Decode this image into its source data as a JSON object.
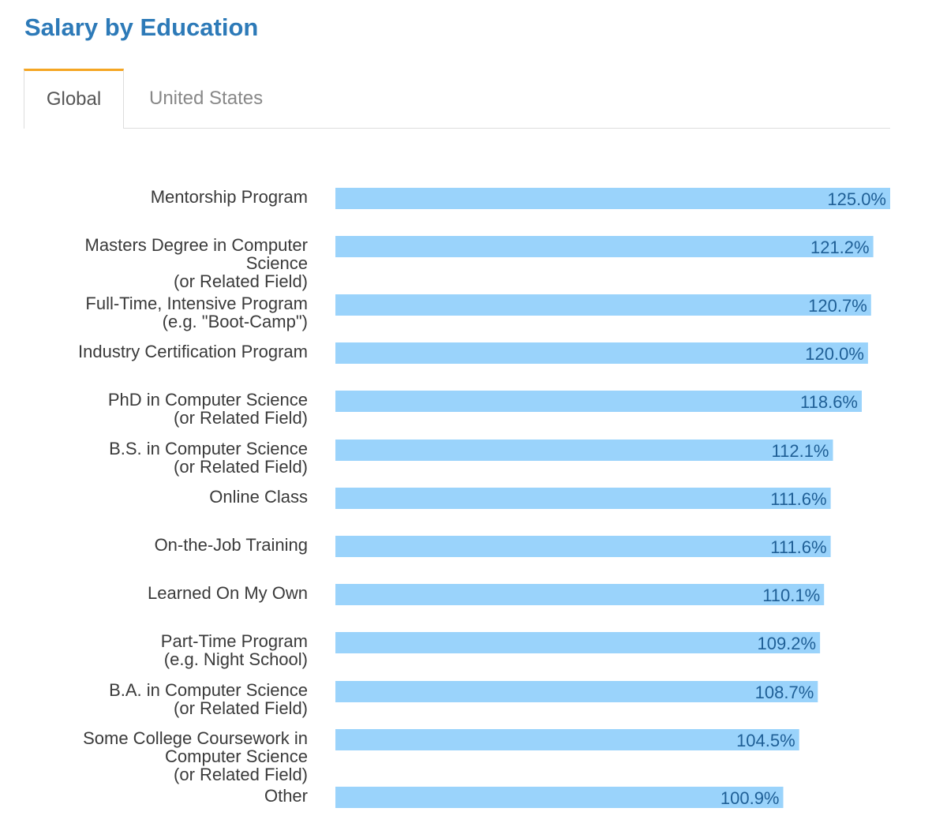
{
  "header": {
    "title": "Salary by Education"
  },
  "tabs": [
    {
      "label": "Global",
      "active": true
    },
    {
      "label": "United States",
      "active": false
    }
  ],
  "colors": {
    "bar": "#9ad3fb",
    "title": "#2d7ab8",
    "tab_accent": "#f5a623",
    "value_text": "#1f5f96"
  },
  "chart_data": {
    "type": "bar",
    "orientation": "horizontal",
    "categories": [
      [
        "Mentorship Program"
      ],
      [
        "Masters Degree in Computer",
        "Science",
        "(or Related Field)"
      ],
      [
        "Full-Time, Intensive Program",
        "(e.g. \"Boot-Camp\")"
      ],
      [
        "Industry Certification Program"
      ],
      [
        "PhD in Computer Science",
        "(or Related Field)"
      ],
      [
        "B.S. in Computer Science",
        "(or Related Field)"
      ],
      [
        "Online Class"
      ],
      [
        "On-the-Job Training"
      ],
      [
        "Learned On My Own"
      ],
      [
        "Part-Time Program",
        "(e.g. Night School)"
      ],
      [
        "B.A. in Computer Science",
        "(or Related Field)"
      ],
      [
        "Some College Coursework in",
        "Computer Science",
        "(or Related Field)"
      ],
      [
        "Other"
      ]
    ],
    "values": [
      125.0,
      121.2,
      120.7,
      120.0,
      118.6,
      112.1,
      111.6,
      111.6,
      110.1,
      109.2,
      108.7,
      104.5,
      100.9
    ],
    "value_labels": [
      "125.0%",
      "121.2%",
      "120.7%",
      "120.0%",
      "118.6%",
      "112.1%",
      "111.6%",
      "111.6%",
      "110.1%",
      "109.2%",
      "108.7%",
      "104.5%",
      "100.9%"
    ],
    "unit": "%",
    "xlim": [
      0,
      125.0
    ],
    "grid": false,
    "legend": "none"
  }
}
